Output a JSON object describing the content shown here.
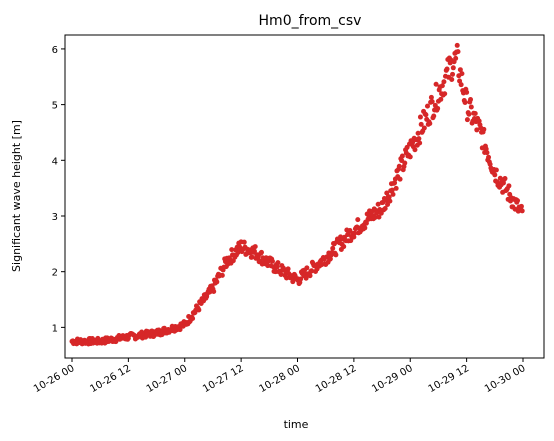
{
  "chart_data": {
    "type": "scatter",
    "title": "Hm0_from_csv",
    "xlabel": "time",
    "ylabel": "Significant wave height [m]",
    "marker_color": "#d62728",
    "x_ticks": [
      "10-26 00",
      "10-26 12",
      "10-27 00",
      "10-27 12",
      "10-28 00",
      "10-28 12",
      "10-29 00",
      "10-29 12",
      "10-30 00"
    ],
    "y_ticks": [
      1,
      2,
      3,
      4,
      5,
      6
    ],
    "xlim": [
      "2023-10-25T21:00",
      "2023-10-30T03:00"
    ],
    "ylim": [
      0.45,
      6.25
    ],
    "grid": false,
    "curve_hours_from_10-26_00": [
      0,
      6,
      12,
      18,
      24,
      30,
      33,
      36,
      39,
      42,
      45,
      48,
      51,
      54,
      60,
      66,
      72,
      75,
      78,
      81,
      82,
      84,
      87,
      90,
      93,
      96
    ],
    "curve_values": [
      0.75,
      0.75,
      0.83,
      0.9,
      1.05,
      1.7,
      2.2,
      2.45,
      2.35,
      2.15,
      2.0,
      1.85,
      2.05,
      2.25,
      2.75,
      3.15,
      4.2,
      4.7,
      5.2,
      5.75,
      5.8,
      5.0,
      4.5,
      3.8,
      3.4,
      3.0
    ]
  }
}
